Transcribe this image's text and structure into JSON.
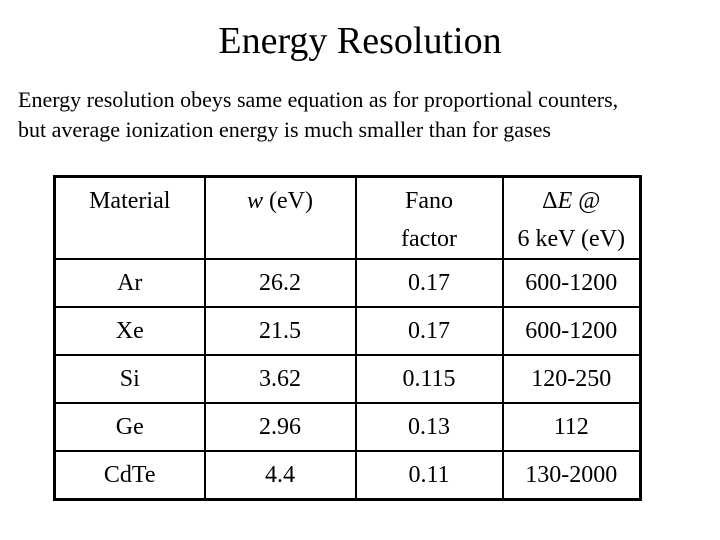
{
  "slide": {
    "title": "Energy Resolution",
    "body_line1": "Energy resolution obeys same equation as for proportional counters,",
    "body_line2": "but average ionization energy is much smaller than for gases"
  },
  "table": {
    "headers": {
      "material": "Material",
      "w_symbol": "w",
      "w_rest": " (eV)",
      "fano_line1": "Fano",
      "fano_line2": "factor",
      "de_delta": "Δ",
      "de_E": "E",
      "de_at": " @",
      "de_line2": "6 keV (eV)"
    },
    "rows": [
      {
        "material": "Ar",
        "w": "26.2",
        "fano": "0.17",
        "de": "600-1200"
      },
      {
        "material": "Xe",
        "w": "21.5",
        "fano": "0.17",
        "de": "600-1200"
      },
      {
        "material": "Si",
        "w": "3.62",
        "fano": "0.115",
        "de": "120-250"
      },
      {
        "material": "Ge",
        "w": "2.96",
        "fano": "0.13",
        "de": "112"
      },
      {
        "material": "CdTe",
        "w": "4.4",
        "fano": "0.11",
        "de": "130-2000"
      }
    ]
  },
  "chart_data": {
    "type": "table",
    "title": "Energy Resolution",
    "columns": [
      "Material",
      "w (eV)",
      "Fano factor",
      "ΔE @ 6 keV (eV)"
    ],
    "rows": [
      [
        "Ar",
        "26.2",
        "0.17",
        "600-1200"
      ],
      [
        "Xe",
        "21.5",
        "0.17",
        "600-1200"
      ],
      [
        "Si",
        "3.62",
        "0.115",
        "120-250"
      ],
      [
        "Ge",
        "2.96",
        "0.13",
        "112"
      ],
      [
        "CdTe",
        "4.4",
        "0.11",
        "130-2000"
      ]
    ]
  },
  "colors": {
    "background": "#ffffff",
    "text": "#000000",
    "table_border": "#000000"
  }
}
